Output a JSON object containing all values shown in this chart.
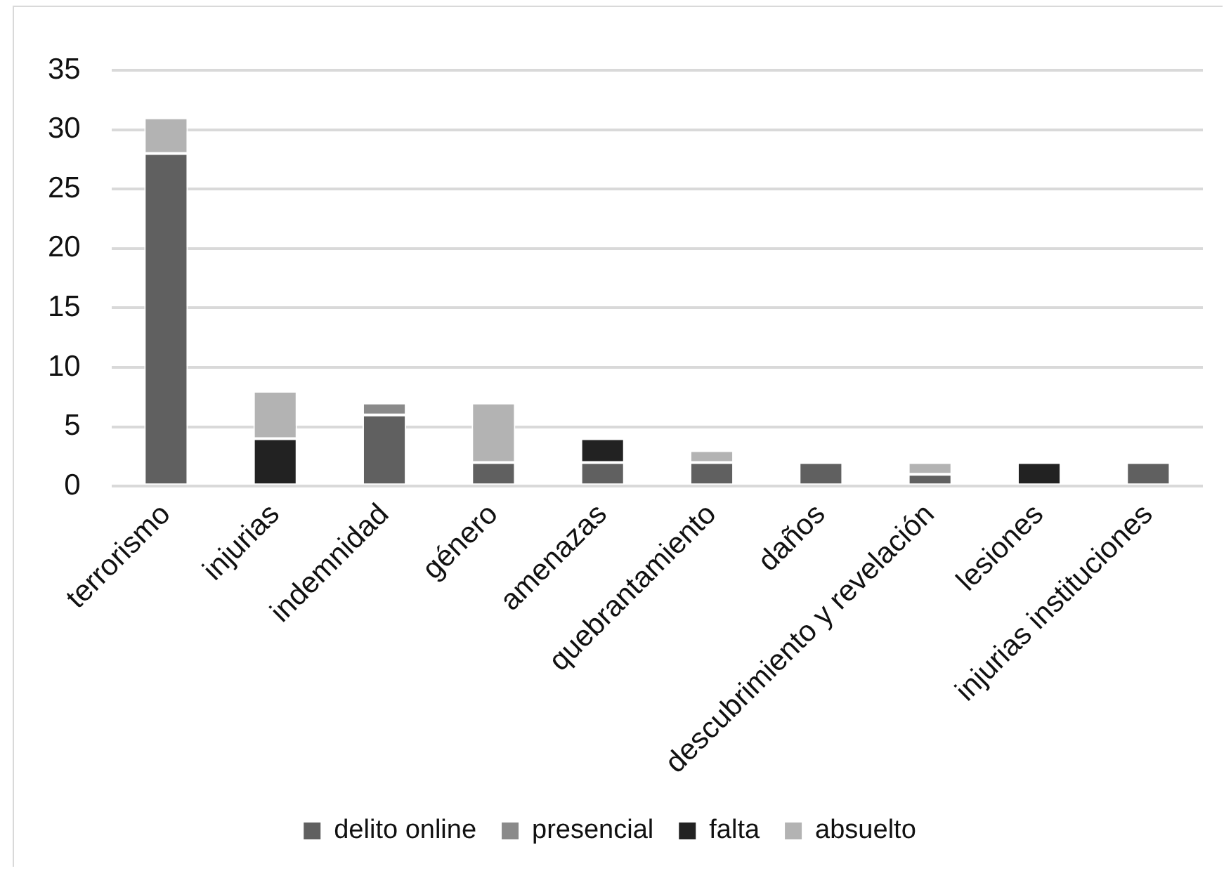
{
  "chart_data": {
    "type": "bar",
    "categories": [
      "terrorismo",
      "injurias",
      "indemnidad",
      "género",
      "amenazas",
      "quebrantamiento",
      "daños",
      "descubrimiento y revelación",
      "lesiones",
      "injurias instituciones"
    ],
    "series": [
      {
        "name": "delito online",
        "color": "#606060",
        "values": [
          28,
          null,
          6,
          2,
          2,
          2,
          2,
          1,
          null,
          2
        ]
      },
      {
        "name": "presencial",
        "color": "#8a8a8a",
        "values": [
          null,
          null,
          1,
          null,
          null,
          null,
          null,
          null,
          null,
          null
        ]
      },
      {
        "name": "falta",
        "color": "#222222",
        "values": [
          null,
          4,
          null,
          null,
          2,
          null,
          null,
          null,
          2,
          null
        ]
      },
      {
        "name": "absuelto",
        "color": "#b3b3b3",
        "values": [
          3,
          4,
          null,
          5,
          null,
          1,
          null,
          1,
          null,
          null
        ]
      }
    ],
    "stacked": true,
    "ylim": [
      0,
      35
    ],
    "yticks": [
      0,
      5,
      10,
      15,
      20,
      25,
      30,
      35
    ],
    "grid": "y",
    "legend": "bottom"
  }
}
